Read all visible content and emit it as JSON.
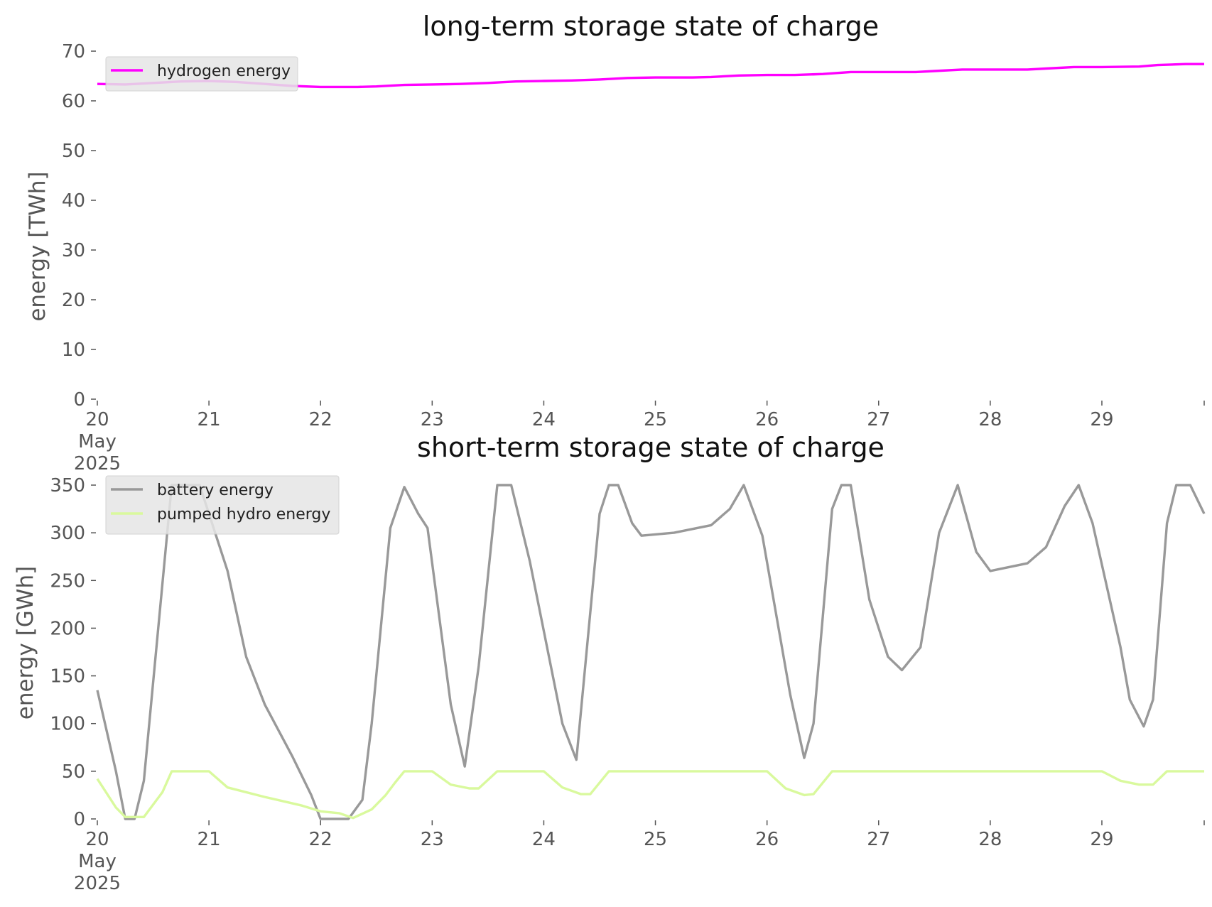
{
  "chart_data": [
    {
      "type": "line",
      "title": "long-term storage state of charge",
      "ylabel": "energy [TWh]",
      "xlabel": "",
      "ylim": [
        0,
        70
      ],
      "yticks": [
        0,
        10,
        20,
        30,
        40,
        50,
        60,
        70
      ],
      "x_start": "2025-05-20",
      "x_end": "2025-05-29 22:00",
      "xticks": [
        {
          "date": "2025-05-20",
          "label": [
            "20",
            "May",
            "2025"
          ]
        },
        {
          "date": "2025-05-21",
          "label": [
            "21"
          ]
        },
        {
          "date": "2025-05-22",
          "label": [
            "22"
          ]
        },
        {
          "date": "2025-05-23",
          "label": [
            "23"
          ]
        },
        {
          "date": "2025-05-24",
          "label": [
            "24"
          ]
        },
        {
          "date": "2025-05-25",
          "label": [
            "25"
          ]
        },
        {
          "date": "2025-05-26",
          "label": [
            "26"
          ]
        },
        {
          "date": "2025-05-27",
          "label": [
            "27"
          ]
        },
        {
          "date": "2025-05-28",
          "label": [
            "28"
          ]
        },
        {
          "date": "2025-05-29",
          "label": [
            "29"
          ]
        }
      ],
      "grid": false,
      "legend_position": "top-left",
      "series": [
        {
          "name": "hydrogen energy",
          "color": "#ff00ff",
          "points": [
            [
              "2025-05-20 00:00",
              63.4
            ],
            [
              "2025-05-20 06:00",
              63.3
            ],
            [
              "2025-05-20 12:00",
              63.6
            ],
            [
              "2025-05-20 18:00",
              63.9
            ],
            [
              "2025-05-21 00:00",
              64.0
            ],
            [
              "2025-05-21 06:00",
              63.8
            ],
            [
              "2025-05-21 12:00",
              63.4
            ],
            [
              "2025-05-21 18:00",
              63.0
            ],
            [
              "2025-05-22 00:00",
              62.8
            ],
            [
              "2025-05-22 08:00",
              62.8
            ],
            [
              "2025-05-22 12:00",
              62.9
            ],
            [
              "2025-05-22 18:00",
              63.2
            ],
            [
              "2025-05-23 00:00",
              63.3
            ],
            [
              "2025-05-23 06:00",
              63.4
            ],
            [
              "2025-05-23 12:00",
              63.6
            ],
            [
              "2025-05-23 18:00",
              63.9
            ],
            [
              "2025-05-24 00:00",
              64.0
            ],
            [
              "2025-05-24 06:00",
              64.1
            ],
            [
              "2025-05-24 12:00",
              64.3
            ],
            [
              "2025-05-24 18:00",
              64.6
            ],
            [
              "2025-05-25 00:00",
              64.7
            ],
            [
              "2025-05-25 08:00",
              64.7
            ],
            [
              "2025-05-25 12:00",
              64.8
            ],
            [
              "2025-05-25 18:00",
              65.1
            ],
            [
              "2025-05-26 00:00",
              65.2
            ],
            [
              "2025-05-26 06:00",
              65.2
            ],
            [
              "2025-05-26 12:00",
              65.4
            ],
            [
              "2025-05-26 18:00",
              65.8
            ],
            [
              "2025-05-27 00:00",
              65.8
            ],
            [
              "2025-05-27 08:00",
              65.8
            ],
            [
              "2025-05-27 12:00",
              66.0
            ],
            [
              "2025-05-27 18:00",
              66.3
            ],
            [
              "2025-05-28 00:00",
              66.3
            ],
            [
              "2025-05-28 08:00",
              66.3
            ],
            [
              "2025-05-28 12:00",
              66.5
            ],
            [
              "2025-05-28 18:00",
              66.8
            ],
            [
              "2025-05-29 00:00",
              66.8
            ],
            [
              "2025-05-29 08:00",
              66.9
            ],
            [
              "2025-05-29 12:00",
              67.2
            ],
            [
              "2025-05-29 18:00",
              67.4
            ],
            [
              "2025-05-29 22:00",
              67.4
            ]
          ]
        }
      ]
    },
    {
      "type": "line",
      "title": "short-term storage state of charge",
      "ylabel": "energy [GWh]",
      "xlabel": "",
      "ylim": [
        0,
        350
      ],
      "yticks": [
        0,
        50,
        100,
        150,
        200,
        250,
        300,
        350
      ],
      "x_start": "2025-05-20",
      "x_end": "2025-05-29 22:00",
      "xticks": [
        {
          "date": "2025-05-20",
          "label": [
            "20",
            "May",
            "2025"
          ]
        },
        {
          "date": "2025-05-21",
          "label": [
            "21"
          ]
        },
        {
          "date": "2025-05-22",
          "label": [
            "22"
          ]
        },
        {
          "date": "2025-05-23",
          "label": [
            "23"
          ]
        },
        {
          "date": "2025-05-24",
          "label": [
            "24"
          ]
        },
        {
          "date": "2025-05-25",
          "label": [
            "25"
          ]
        },
        {
          "date": "2025-05-26",
          "label": [
            "26"
          ]
        },
        {
          "date": "2025-05-27",
          "label": [
            "27"
          ]
        },
        {
          "date": "2025-05-28",
          "label": [
            "28"
          ]
        },
        {
          "date": "2025-05-29",
          "label": [
            "29"
          ]
        }
      ],
      "grid": false,
      "legend_position": "top-left",
      "series": [
        {
          "name": "battery energy",
          "color": "#999999",
          "points": [
            [
              "2025-05-20 00:00",
              135
            ],
            [
              "2025-05-20 04:00",
              50
            ],
            [
              "2025-05-20 06:00",
              0
            ],
            [
              "2025-05-20 08:00",
              0
            ],
            [
              "2025-05-20 10:00",
              40
            ],
            [
              "2025-05-20 16:00",
              350
            ],
            [
              "2025-05-20 22:00",
              350
            ],
            [
              "2025-05-21 04:00",
              260
            ],
            [
              "2025-05-21 08:00",
              170
            ],
            [
              "2025-05-21 12:00",
              120
            ],
            [
              "2025-05-21 18:00",
              65
            ],
            [
              "2025-05-21 22:00",
              25
            ],
            [
              "2025-05-22 00:00",
              0
            ],
            [
              "2025-05-22 06:00",
              0
            ],
            [
              "2025-05-22 09:00",
              20
            ],
            [
              "2025-05-22 11:00",
              100
            ],
            [
              "2025-05-22 15:00",
              305
            ],
            [
              "2025-05-22 18:00",
              348
            ],
            [
              "2025-05-22 21:00",
              320
            ],
            [
              "2025-05-22 23:00",
              305
            ],
            [
              "2025-05-23 04:00",
              120
            ],
            [
              "2025-05-23 07:00",
              55
            ],
            [
              "2025-05-23 10:00",
              160
            ],
            [
              "2025-05-23 14:00",
              350
            ],
            [
              "2025-05-23 17:00",
              350
            ],
            [
              "2025-05-23 21:00",
              270
            ],
            [
              "2025-05-24 04:00",
              100
            ],
            [
              "2025-05-24 07:00",
              62
            ],
            [
              "2025-05-24 12:00",
              320
            ],
            [
              "2025-05-24 14:00",
              350
            ],
            [
              "2025-05-24 16:00",
              350
            ],
            [
              "2025-05-24 19:00",
              310
            ],
            [
              "2025-05-24 21:00",
              297
            ],
            [
              "2025-05-25 04:00",
              300
            ],
            [
              "2025-05-25 12:00",
              308
            ],
            [
              "2025-05-25 16:00",
              325
            ],
            [
              "2025-05-25 19:00",
              350
            ],
            [
              "2025-05-25 23:00",
              297
            ],
            [
              "2025-05-26 05:00",
              130
            ],
            [
              "2025-05-26 08:00",
              64
            ],
            [
              "2025-05-26 10:00",
              100
            ],
            [
              "2025-05-26 14:00",
              325
            ],
            [
              "2025-05-26 16:00",
              350
            ],
            [
              "2025-05-26 18:00",
              350
            ],
            [
              "2025-05-26 22:00",
              230
            ],
            [
              "2025-05-27 02:00",
              170
            ],
            [
              "2025-05-27 05:00",
              156
            ],
            [
              "2025-05-27 09:00",
              180
            ],
            [
              "2025-05-27 13:00",
              300
            ],
            [
              "2025-05-27 17:00",
              350
            ],
            [
              "2025-05-27 21:00",
              280
            ],
            [
              "2025-05-28 00:00",
              260
            ],
            [
              "2025-05-28 08:00",
              268
            ],
            [
              "2025-05-28 12:00",
              285
            ],
            [
              "2025-05-28 16:00",
              328
            ],
            [
              "2025-05-28 19:00",
              350
            ],
            [
              "2025-05-28 22:00",
              310
            ],
            [
              "2025-05-29 04:00",
              180
            ],
            [
              "2025-05-29 06:00",
              125
            ],
            [
              "2025-05-29 09:00",
              97
            ],
            [
              "2025-05-29 11:00",
              125
            ],
            [
              "2025-05-29 14:00",
              310
            ],
            [
              "2025-05-29 16:00",
              350
            ],
            [
              "2025-05-29 19:00",
              350
            ],
            [
              "2025-05-29 22:00",
              320
            ]
          ]
        },
        {
          "name": "pumped hydro energy",
          "color": "#d9f99d",
          "points": [
            [
              "2025-05-20 00:00",
              42
            ],
            [
              "2025-05-20 04:00",
              12
            ],
            [
              "2025-05-20 06:00",
              2
            ],
            [
              "2025-05-20 10:00",
              2
            ],
            [
              "2025-05-20 14:00",
              28
            ],
            [
              "2025-05-20 16:00",
              50
            ],
            [
              "2025-05-21 00:00",
              50
            ],
            [
              "2025-05-21 04:00",
              33
            ],
            [
              "2025-05-21 12:00",
              23
            ],
            [
              "2025-05-21 20:00",
              14
            ],
            [
              "2025-05-22 00:00",
              8
            ],
            [
              "2025-05-22 04:00",
              6
            ],
            [
              "2025-05-22 07:00",
              1
            ],
            [
              "2025-05-22 11:00",
              10
            ],
            [
              "2025-05-22 14:00",
              25
            ],
            [
              "2025-05-22 16:00",
              38
            ],
            [
              "2025-05-22 18:00",
              50
            ],
            [
              "2025-05-23 00:00",
              50
            ],
            [
              "2025-05-23 04:00",
              36
            ],
            [
              "2025-05-23 08:00",
              32
            ],
            [
              "2025-05-23 10:00",
              32
            ],
            [
              "2025-05-23 14:00",
              50
            ],
            [
              "2025-05-24 00:00",
              50
            ],
            [
              "2025-05-24 04:00",
              33
            ],
            [
              "2025-05-24 08:00",
              26
            ],
            [
              "2025-05-24 10:00",
              26
            ],
            [
              "2025-05-24 14:00",
              50
            ],
            [
              "2025-05-26 00:00",
              50
            ],
            [
              "2025-05-26 04:00",
              32
            ],
            [
              "2025-05-26 08:00",
              25
            ],
            [
              "2025-05-26 10:00",
              26
            ],
            [
              "2025-05-26 14:00",
              50
            ],
            [
              "2025-05-29 00:00",
              50
            ],
            [
              "2025-05-29 04:00",
              40
            ],
            [
              "2025-05-29 08:00",
              36
            ],
            [
              "2025-05-29 11:00",
              36
            ],
            [
              "2025-05-29 14:00",
              50
            ],
            [
              "2025-05-29 22:00",
              50
            ]
          ]
        }
      ]
    }
  ]
}
